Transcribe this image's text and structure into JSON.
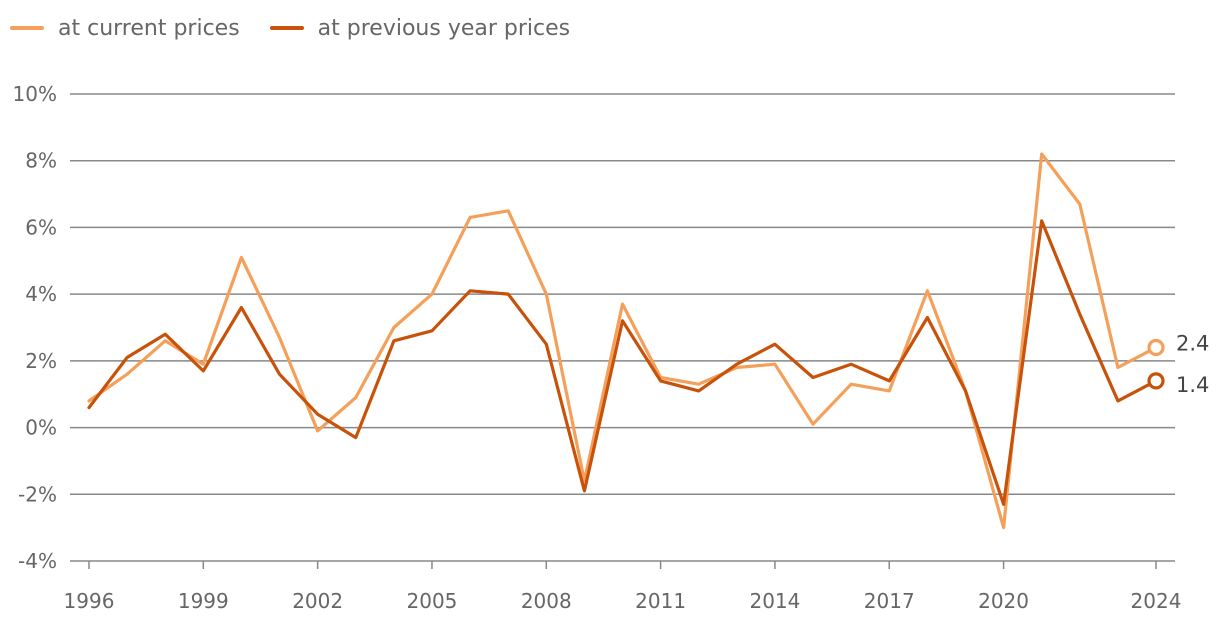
{
  "chart_data": {
    "type": "line",
    "title": "",
    "xlabel": "",
    "ylabel": "",
    "ylim": [
      -4,
      10
    ],
    "xlim": [
      1996,
      2024
    ],
    "grid": true,
    "legend_position": "top-left",
    "y_ticks": [
      -4,
      -2,
      0,
      2,
      4,
      6,
      8,
      10
    ],
    "y_tick_labels": [
      "-4%",
      "-2%",
      "0%",
      "2%",
      "4%",
      "6%",
      "8%",
      "10%"
    ],
    "x_ticks": [
      1996,
      1999,
      2002,
      2005,
      2008,
      2011,
      2014,
      2017,
      2020,
      2024
    ],
    "x_tick_labels": [
      "1996",
      "1999",
      "2002",
      "2005",
      "2008",
      "2011",
      "2014",
      "2017",
      "2020",
      "2024"
    ],
    "x": [
      1996,
      1997,
      1998,
      1999,
      2000,
      2001,
      2002,
      2003,
      2004,
      2005,
      2006,
      2007,
      2008,
      2009,
      2010,
      2011,
      2012,
      2013,
      2014,
      2015,
      2016,
      2017,
      2018,
      2019,
      2020,
      2021,
      2022,
      2023,
      2024
    ],
    "series": [
      {
        "name": "at current prices",
        "color": "#f5a05a",
        "values": [
          0.8,
          1.6,
          2.6,
          1.9,
          5.1,
          2.7,
          -0.1,
          0.9,
          3.0,
          4.0,
          6.3,
          6.5,
          4.0,
          -1.6,
          3.7,
          1.5,
          1.3,
          1.8,
          1.9,
          0.1,
          1.3,
          1.1,
          4.1,
          1.1,
          -3.0,
          8.2,
          6.7,
          1.8,
          2.4
        ],
        "end_label": "2.4"
      },
      {
        "name": "at previous year prices",
        "color": "#c8520a",
        "values": [
          0.6,
          2.1,
          2.8,
          1.7,
          3.6,
          1.6,
          0.4,
          -0.3,
          2.6,
          2.9,
          4.1,
          4.0,
          2.5,
          -1.9,
          3.2,
          1.4,
          1.1,
          1.9,
          2.5,
          1.5,
          1.9,
          1.4,
          3.3,
          1.1,
          -2.3,
          6.2,
          3.4,
          0.8,
          1.4
        ],
        "end_label": "1.4"
      }
    ]
  }
}
